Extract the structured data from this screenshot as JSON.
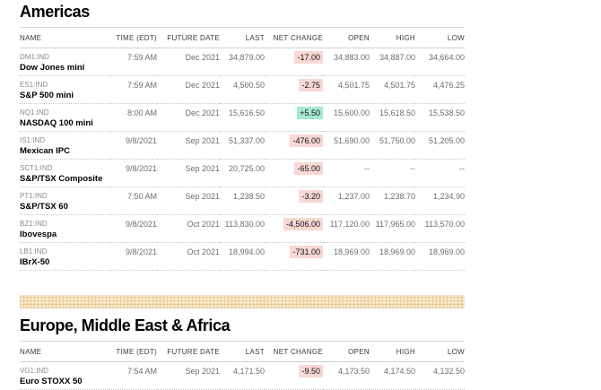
{
  "colors": {
    "negative_badge_bg": "#f8d7d4",
    "positive_badge_bg": "#a6e9d1",
    "banner_base": "#f8e9cb"
  },
  "sections": [
    {
      "title": "Americas",
      "columns": [
        "NAME",
        "TIME (EDT)",
        "FUTURE DATE",
        "LAST",
        "NET CHANGE",
        "OPEN",
        "HIGH",
        "LOW"
      ],
      "banner_after": true,
      "rows": [
        {
          "symbol": "DM1:IND",
          "name": "Dow Jones mini",
          "time": "7:59 AM",
          "future_date": "Dec 2021",
          "last": "34,879.00",
          "net_change": "-17.00",
          "direction": "down",
          "open": "34,883.00",
          "high": "34,887.00",
          "low": "34,664.00"
        },
        {
          "symbol": "ES1:IND",
          "name": "S&P 500 mini",
          "time": "7:59 AM",
          "future_date": "Dec 2021",
          "last": "4,500.50",
          "net_change": "-2.75",
          "direction": "down",
          "open": "4,501.75",
          "high": "4,501.75",
          "low": "4,476.25"
        },
        {
          "symbol": "NQ1:IND",
          "name": "NASDAQ 100 mini",
          "time": "8:00 AM",
          "future_date": "Dec 2021",
          "last": "15,616.50",
          "net_change": "+5.50",
          "direction": "up",
          "open": "15,600.00",
          "high": "15,618.50",
          "low": "15,538.50"
        },
        {
          "symbol": "IS1:IND",
          "name": "Mexican IPC",
          "time": "9/8/2021",
          "future_date": "Sep 2021",
          "last": "51,337.00",
          "net_change": "-476.00",
          "direction": "down",
          "open": "51,690.00",
          "high": "51,750.00",
          "low": "51,205.00"
        },
        {
          "symbol": "SCT1:IND",
          "name": "S&P/TSX Composite",
          "time": "9/8/2021",
          "future_date": "Sep 2021",
          "last": "20,725.00",
          "net_change": "-65.00",
          "direction": "down",
          "open": "--",
          "high": "--",
          "low": "--"
        },
        {
          "symbol": "PT1:IND",
          "name": "S&P/TSX 60",
          "time": "7:50 AM",
          "future_date": "Sep 2021",
          "last": "1,238.50",
          "net_change": "-3.20",
          "direction": "down",
          "open": "1,237.00",
          "high": "1,238.70",
          "low": "1,234.90"
        },
        {
          "symbol": "BZ1:IND",
          "name": "Ibovespa",
          "time": "9/8/2021",
          "future_date": "Oct 2021",
          "last": "113,830.00",
          "net_change": "-4,506.00",
          "direction": "down",
          "open": "117,120.00",
          "high": "117,965.00",
          "low": "113,570.00"
        },
        {
          "symbol": "LB1:IND",
          "name": "IBrX-50",
          "time": "9/8/2021",
          "future_date": "Oct 2021",
          "last": "18,994.00",
          "net_change": "-731.00",
          "direction": "down",
          "open": "18,969.00",
          "high": "18,969.00",
          "low": "18,969.00"
        }
      ]
    },
    {
      "title": "Europe, Middle East & Africa",
      "columns": [
        "NAME",
        "TIME (EDT)",
        "FUTURE DATE",
        "LAST",
        "NET CHANGE",
        "OPEN",
        "HIGH",
        "LOW"
      ],
      "banner_after": false,
      "rows": [
        {
          "symbol": "VG1:IND",
          "name": "Euro STOXX 50",
          "time": "7:54 AM",
          "future_date": "Sep 2021",
          "last": "4,171.50",
          "net_change": "-9.50",
          "direction": "down",
          "open": "4,173.50",
          "high": "4,174.50",
          "low": "4,132.50"
        }
      ]
    }
  ]
}
